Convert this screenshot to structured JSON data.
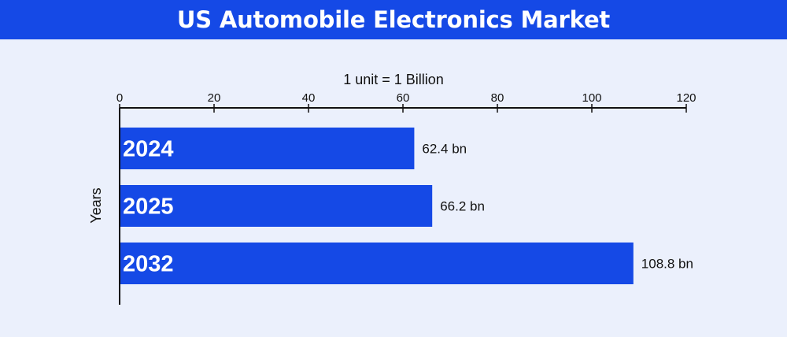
{
  "header": {
    "title": "US Automobile Electronics Market"
  },
  "colors": {
    "header_background": "#1549e6",
    "bar": "#1549e6",
    "page_background": "#ebf0fc",
    "axis": "#111111"
  },
  "chart_data": {
    "type": "bar",
    "orientation": "horizontal",
    "title": "US Automobile Electronics Market",
    "subtitle": "1 unit = 1 Billion",
    "xlabel": "",
    "ylabel": "Years",
    "x_axis_position": "top",
    "xlim": [
      0,
      120
    ],
    "x_ticks": [
      0,
      20,
      40,
      60,
      80,
      100,
      120
    ],
    "categories": [
      "2024",
      "2025",
      "2032"
    ],
    "values": [
      62.4,
      66.2,
      108.8
    ],
    "data_labels": [
      "62.4 bn",
      "66.2 bn",
      "108.8 bn"
    ],
    "category_label_placement": "inside-bar-left",
    "grid": false,
    "legend": "none"
  }
}
